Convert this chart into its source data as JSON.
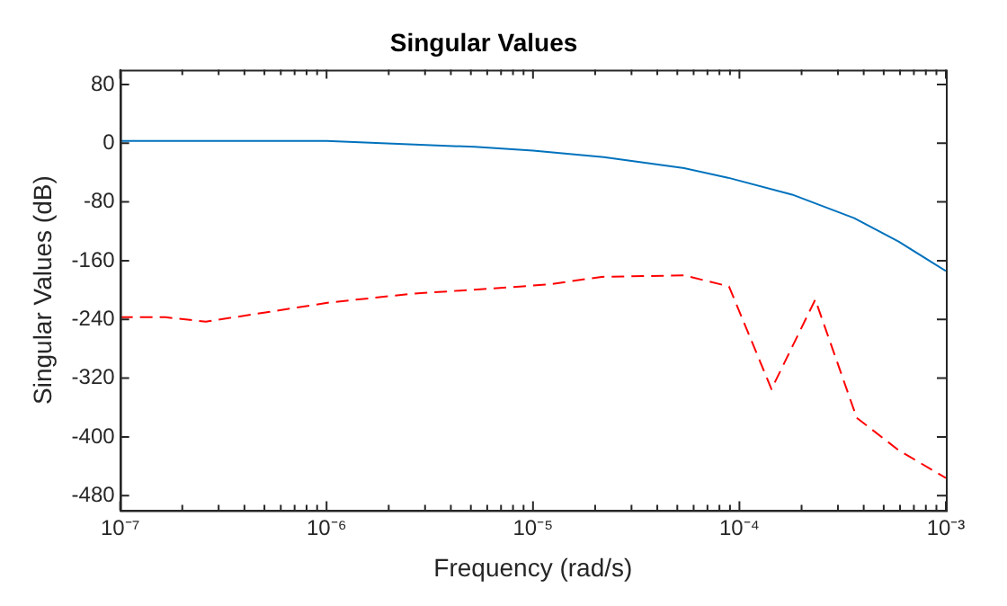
{
  "chart_data": {
    "type": "line",
    "title": "Singular Values",
    "xlabel": "Frequency (rad/s)",
    "ylabel": "Singular Values (dB)",
    "log": "x",
    "grid": false,
    "legend": false,
    "marker": "none",
    "xlim": [
      1e-07,
      0.001
    ],
    "ylim": [
      -500,
      100
    ],
    "xticks": [
      {
        "value": 1e-07,
        "label": "10⁻⁷"
      },
      {
        "value": 2e-07,
        "label": null
      },
      {
        "value": 3e-07,
        "label": null
      },
      {
        "value": 4e-07,
        "label": null
      },
      {
        "value": 5e-07,
        "label": null
      },
      {
        "value": 6e-07,
        "label": null
      },
      {
        "value": 7e-07,
        "label": null
      },
      {
        "value": 8e-07,
        "label": null
      },
      {
        "value": 9e-07,
        "label": null
      },
      {
        "value": 1e-06,
        "label": "10⁻⁶"
      },
      {
        "value": 2e-06,
        "label": null
      },
      {
        "value": 3e-06,
        "label": null
      },
      {
        "value": 4e-06,
        "label": null
      },
      {
        "value": 5e-06,
        "label": null
      },
      {
        "value": 6e-06,
        "label": null
      },
      {
        "value": 7e-06,
        "label": null
      },
      {
        "value": 8e-06,
        "label": null
      },
      {
        "value": 9e-06,
        "label": null
      },
      {
        "value": 1e-05,
        "label": "10⁻⁵"
      },
      {
        "value": 2e-05,
        "label": null
      },
      {
        "value": 3e-05,
        "label": null
      },
      {
        "value": 4e-05,
        "label": null
      },
      {
        "value": 5e-05,
        "label": null
      },
      {
        "value": 6e-05,
        "label": null
      },
      {
        "value": 7e-05,
        "label": null
      },
      {
        "value": 8e-05,
        "label": null
      },
      {
        "value": 9e-05,
        "label": null
      },
      {
        "value": 0.0001,
        "label": "10⁻⁴"
      },
      {
        "value": 0.0002,
        "label": null
      },
      {
        "value": 0.0003,
        "label": null
      },
      {
        "value": 0.0004,
        "label": null
      },
      {
        "value": 0.0005,
        "label": null
      },
      {
        "value": 0.0006,
        "label": null
      },
      {
        "value": 0.0007,
        "label": null
      },
      {
        "value": 0.0008,
        "label": null
      },
      {
        "value": 0.0009,
        "label": null
      },
      {
        "value": 0.001,
        "label": "10⁻³"
      }
    ],
    "yticks": [
      -480,
      -400,
      -320,
      -240,
      -160,
      -80,
      0,
      80
    ],
    "series": [
      {
        "color": "#0072bd",
        "line_style": "solid",
        "x": [
          1e-07,
          1e-06,
          5.2e-06,
          1e-05,
          2.2e-05,
          5.4e-05,
          8.8e-05,
          0.00018,
          0.00036,
          0.00059,
          0.001
        ],
        "values": [
          3,
          3,
          -5,
          -10,
          -19,
          -34,
          -47,
          -70,
          -102,
          -134,
          -174
        ]
      },
      {
        "color": "#ff0000",
        "line_style": "dashed",
        "x": [
          1e-07,
          1.65e-07,
          2.6e-07,
          1.03e-06,
          2.6e-06,
          8e-06,
          1.22e-05,
          2.15e-05,
          5.4e-05,
          8.9e-05,
          0.000143,
          0.000233,
          0.00037,
          0.00059,
          0.001
        ],
        "values": [
          -237,
          -237,
          -243,
          -217,
          -205,
          -196,
          -192,
          -182,
          -180,
          -195,
          -335,
          -213,
          -374,
          -418,
          -456
        ]
      }
    ]
  }
}
